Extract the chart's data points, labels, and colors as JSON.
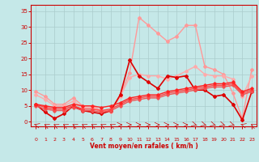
{
  "title": "",
  "xlabel": "Vent moyen/en rafales ( km/h )",
  "xlim": [
    -0.5,
    23.5
  ],
  "ylim": [
    -1.5,
    37
  ],
  "yticks": [
    0,
    5,
    10,
    15,
    20,
    25,
    30,
    35
  ],
  "xticks": [
    0,
    1,
    2,
    3,
    4,
    5,
    6,
    7,
    8,
    9,
    10,
    11,
    12,
    13,
    14,
    15,
    16,
    17,
    18,
    19,
    20,
    21,
    22,
    23
  ],
  "bg_color": "#c5e8e8",
  "grid_color": "#aacccc",
  "series": [
    {
      "x": [
        0,
        1,
        2,
        3,
        4,
        5,
        6,
        7,
        8,
        9,
        10,
        11,
        12,
        13,
        14,
        15,
        16,
        17,
        18,
        19,
        20,
        21,
        22,
        23
      ],
      "y": [
        9.5,
        8.0,
        5.5,
        5.5,
        7.5,
        5.0,
        5.0,
        3.5,
        3.5,
        8.5,
        15.5,
        33.0,
        30.5,
        28.0,
        25.5,
        27.0,
        30.5,
        30.5,
        17.5,
        16.5,
        15.0,
        9.0,
        1.0,
        16.5
      ],
      "color": "#ff9999",
      "lw": 1.0,
      "marker": "D",
      "ms": 2.0
    },
    {
      "x": [
        0,
        1,
        2,
        3,
        4,
        5,
        6,
        7,
        8,
        9,
        10,
        11,
        12,
        13,
        14,
        15,
        16,
        17,
        18,
        19,
        20,
        21,
        22,
        23
      ],
      "y": [
        8.5,
        7.0,
        5.0,
        5.0,
        6.5,
        4.5,
        4.5,
        3.0,
        3.0,
        8.0,
        14.0,
        15.0,
        14.5,
        14.5,
        13.5,
        14.5,
        16.0,
        17.5,
        15.0,
        14.5,
        14.5,
        13.5,
        8.0,
        14.5
      ],
      "color": "#ffaaaa",
      "lw": 1.0,
      "marker": "D",
      "ms": 2.0
    },
    {
      "x": [
        0,
        1,
        2,
        3,
        4,
        5,
        6,
        7,
        8,
        9,
        10,
        11,
        12,
        13,
        14,
        15,
        16,
        17,
        18,
        19,
        20,
        21,
        22,
        23
      ],
      "y": [
        5.5,
        3.0,
        1.0,
        2.5,
        5.0,
        3.5,
        3.0,
        2.5,
        3.5,
        8.5,
        19.5,
        14.5,
        12.5,
        10.5,
        14.5,
        14.0,
        14.5,
        10.0,
        10.0,
        8.0,
        8.5,
        5.5,
        0.5,
        9.5
      ],
      "color": "#dd0000",
      "lw": 1.2,
      "marker": "D",
      "ms": 2.0
    },
    {
      "x": [
        0,
        1,
        2,
        3,
        4,
        5,
        6,
        7,
        8,
        9,
        10,
        11,
        12,
        13,
        14,
        15,
        16,
        17,
        18,
        19,
        20,
        21,
        22,
        23
      ],
      "y": [
        5.0,
        4.0,
        3.5,
        3.5,
        4.5,
        3.5,
        3.5,
        3.0,
        3.5,
        5.0,
        6.5,
        7.0,
        7.5,
        7.5,
        8.5,
        9.0,
        9.5,
        10.0,
        10.5,
        11.0,
        11.0,
        11.5,
        8.5,
        9.5
      ],
      "color": "#ee5555",
      "lw": 1.0,
      "marker": "D",
      "ms": 1.8
    },
    {
      "x": [
        0,
        1,
        2,
        3,
        4,
        5,
        6,
        7,
        8,
        9,
        10,
        11,
        12,
        13,
        14,
        15,
        16,
        17,
        18,
        19,
        20,
        21,
        22,
        23
      ],
      "y": [
        5.5,
        4.5,
        4.0,
        4.0,
        5.0,
        4.0,
        4.0,
        3.5,
        4.0,
        5.5,
        7.0,
        7.5,
        8.0,
        8.0,
        9.0,
        9.5,
        10.0,
        10.5,
        11.0,
        11.5,
        11.5,
        12.0,
        9.0,
        10.0
      ],
      "color": "#ff4444",
      "lw": 1.0,
      "marker": "D",
      "ms": 1.8
    },
    {
      "x": [
        0,
        1,
        2,
        3,
        4,
        5,
        6,
        7,
        8,
        9,
        10,
        11,
        12,
        13,
        14,
        15,
        16,
        17,
        18,
        19,
        20,
        21,
        22,
        23
      ],
      "y": [
        5.5,
        5.0,
        4.5,
        4.5,
        5.5,
        5.0,
        5.0,
        4.5,
        5.0,
        6.0,
        7.5,
        8.0,
        8.5,
        8.5,
        9.5,
        10.0,
        10.5,
        11.0,
        11.5,
        12.0,
        12.0,
        12.5,
        9.5,
        10.5
      ],
      "color": "#ff2222",
      "lw": 1.0,
      "marker": "D",
      "ms": 1.8
    }
  ],
  "arrow_angles": [
    225,
    210,
    210,
    210,
    210,
    210,
    210,
    210,
    210,
    90,
    90,
    90,
    90,
    90,
    90,
    90,
    90,
    45,
    45,
    45,
    45,
    45,
    225,
    210
  ]
}
